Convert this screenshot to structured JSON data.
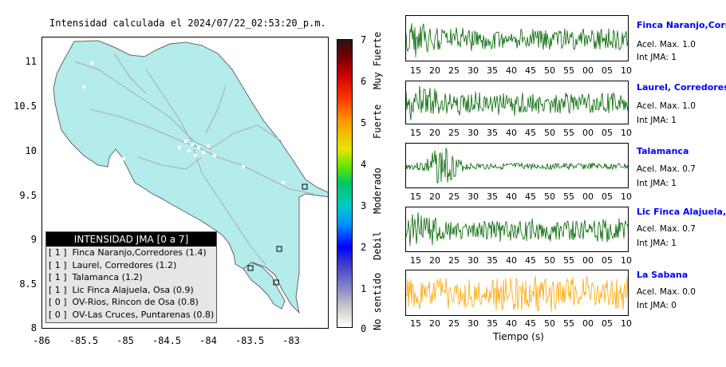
{
  "map": {
    "title": "Intensidad calculada el 2024/07/22_02:53:20_p.m.",
    "y_ticks": [
      "11",
      "10.5",
      "10",
      "9.5",
      "9",
      "8.5",
      "8"
    ],
    "x_ticks": [
      "-86",
      "-85.5",
      "-85",
      "-84.5",
      "-84",
      "-83.5",
      "-83"
    ],
    "land_color": "#b4ebeb"
  },
  "legend": {
    "header": "INTENSIDAD JMA [0 a 7]",
    "rows": [
      {
        "level": "[ 1 ]",
        "text": "Finca Naranjo,Corredores (1.4)"
      },
      {
        "level": "[ 1 ]",
        "text": "Laurel, Corredores (1.2)"
      },
      {
        "level": "[ 1 ]",
        "text": "Talamanca (1.2)"
      },
      {
        "level": "[ 1 ]",
        "text": "Lic Finca Alajuela, Osa (0.9)"
      },
      {
        "level": "[ 0 ]",
        "text": "OV-Rios, Rincon de Osa (0.8)"
      },
      {
        "level": "[ 0 ]",
        "text": "OV-Las Cruces, Puntarenas (0.8)"
      }
    ]
  },
  "colorbar": {
    "ticks": [
      "7",
      "6",
      "5",
      "4",
      "3",
      "2",
      "1",
      "0"
    ],
    "categories": [
      "Muy Fuerte",
      "Fuerte",
      "Moderado",
      "Debil",
      "No sentido"
    ]
  },
  "traces": {
    "x_labels": [
      "15",
      "20",
      "25",
      "30",
      "35",
      "40",
      "45",
      "50",
      "55",
      "00",
      "05",
      "10"
    ],
    "x_title": "Tiempo (s)",
    "stations": [
      {
        "name": "Finca Naranjo,Corredor",
        "accel": "Acel. Max. 1.0",
        "jma": "Int JMA: 1",
        "color": "#006400"
      },
      {
        "name": "Laurel, Corredores",
        "accel": "Acel. Max. 1.0",
        "jma": "Int JMA: 1",
        "color": "#006400"
      },
      {
        "name": "Talamanca",
        "accel": "Acel. Max. 0.7",
        "jma": "Int JMA: 1",
        "color": "#006400"
      },
      {
        "name": "Lic Finca Alajuela, Osa",
        "accel": "Acel. Max. 0.7",
        "jma": "Int JMA: 1",
        "color": "#006400"
      },
      {
        "name": "La Sabana",
        "accel": "Acel. Max. 0.0",
        "jma": "Int JMA: 0",
        "color": "#ffa500"
      }
    ]
  }
}
